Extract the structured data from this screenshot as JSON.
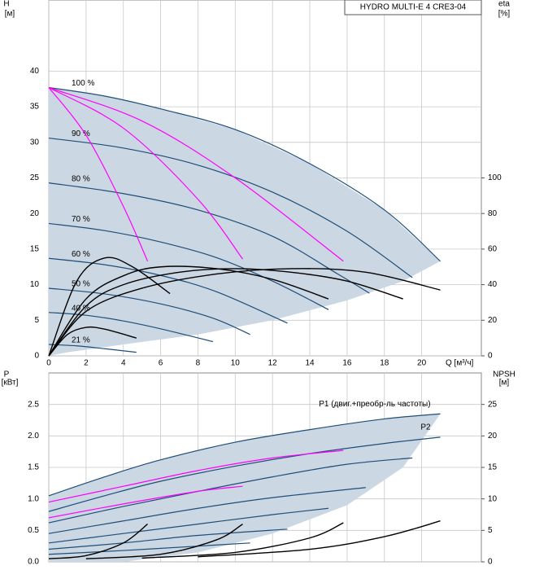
{
  "chart_data": [
    {
      "type": "line",
      "annotation": "HYDRO MULTI-E 4 CRE3-04",
      "y_label": "H",
      "y_unit": "[м]",
      "y2_label": "eta",
      "y2_unit": "[%]",
      "x_label": "Q [м³/ч]",
      "xlim": [
        0,
        23.2
      ],
      "ylim": [
        0,
        50
      ],
      "y2lim": [
        0,
        200
      ],
      "xticks": [
        0,
        2,
        4,
        6,
        8,
        10,
        12,
        14,
        16,
        18,
        20
      ],
      "yticks": [
        0,
        5,
        10,
        15,
        20,
        25,
        30,
        35,
        40
      ],
      "y2ticks": [
        0,
        20,
        40,
        60,
        80,
        100
      ],
      "grid": true,
      "area": {
        "color": "#cbd7e3",
        "x": [
          0,
          3,
          6,
          10,
          14,
          18,
          21,
          19,
          16,
          12,
          8,
          4,
          1,
          0
        ],
        "values": [
          37.7,
          36.5,
          34.7,
          31.8,
          27,
          20.5,
          13.3,
          10.5,
          7.8,
          5,
          3,
          1.6,
          0.5,
          0
        ]
      },
      "series": [
        {
          "name": "100 %",
          "color": "#1f4e79",
          "x": [
            0,
            3,
            6,
            10,
            14,
            18,
            21
          ],
          "values": [
            37.7,
            36.5,
            34.7,
            31.8,
            27,
            20.5,
            13.3
          ]
        },
        {
          "name": "90 %",
          "color": "#1f4e79",
          "x": [
            0,
            4,
            8,
            12,
            16,
            19.5
          ],
          "values": [
            30.6,
            29.2,
            26.8,
            23,
            17.5,
            11
          ]
        },
        {
          "name": "80 %",
          "color": "#1f4e79",
          "x": [
            0,
            4,
            8,
            12,
            15.5,
            17.2
          ],
          "values": [
            24.3,
            22.8,
            20.5,
            16.8,
            11.5,
            8.8
          ]
        },
        {
          "name": "70 %",
          "color": "#1f4e79",
          "x": [
            0,
            3,
            6,
            9,
            12,
            15
          ],
          "values": [
            18.6,
            17.6,
            16,
            13.8,
            10.5,
            6.5
          ]
        },
        {
          "name": "60 %",
          "color": "#1f4e79",
          "x": [
            0,
            3,
            6,
            9,
            12.8
          ],
          "values": [
            13.7,
            12.8,
            11.3,
            9,
            4.6
          ]
        },
        {
          "name": "50 %",
          "color": "#1f4e79",
          "x": [
            0,
            3,
            6,
            8.8,
            10.8
          ],
          "values": [
            9.5,
            8.7,
            7.3,
            5.3,
            3
          ]
        },
        {
          "name": "40 %",
          "color": "#1f4e79",
          "x": [
            0,
            2,
            4,
            6,
            8.8
          ],
          "values": [
            6.1,
            5.7,
            4.9,
            3.8,
            2
          ]
        },
        {
          "name": "21 %",
          "color": "#1f4e79",
          "x": [
            0,
            1.5,
            3,
            4.7
          ],
          "values": [
            1.6,
            1.4,
            1.0,
            0.5
          ]
        },
        {
          "color": "#ff00ff",
          "x": [
            0,
            2,
            4,
            5.3
          ],
          "values": [
            37.7,
            31,
            21,
            13.3
          ]
        },
        {
          "color": "#ff00ff",
          "x": [
            0,
            4,
            8,
            10.4
          ],
          "values": [
            37.7,
            32,
            22,
            13.6
          ]
        },
        {
          "color": "#ff00ff",
          "x": [
            0,
            5,
            10,
            15.8
          ],
          "values": [
            37.7,
            33,
            25,
            13.3
          ]
        },
        {
          "color": "#000000",
          "axis": "y2",
          "x": [
            0,
            2,
            5,
            9,
            13,
            17,
            21
          ],
          "values": [
            0,
            25,
            38,
            46,
            49,
            47,
            37
          ]
        },
        {
          "color": "#000000",
          "axis": "y2",
          "x": [
            0,
            2,
            4,
            7,
            10,
            13,
            16,
            19
          ],
          "values": [
            0,
            28,
            40,
            47,
            49,
            47,
            42,
            32
          ]
        },
        {
          "color": "#000000",
          "axis": "y2",
          "x": [
            0,
            2,
            4,
            6,
            9,
            12,
            15
          ],
          "values": [
            0,
            32,
            45,
            50,
            49,
            43,
            32
          ]
        },
        {
          "color": "#000000",
          "axis": "y2",
          "x": [
            0,
            1.5,
            3,
            4.5,
            6.5
          ],
          "values": [
            0,
            42,
            55,
            50,
            35
          ]
        },
        {
          "color": "#000000",
          "axis": "y2",
          "x": [
            0,
            1,
            2,
            3,
            4.7
          ],
          "values": [
            0,
            12,
            16,
            15,
            10
          ]
        }
      ]
    },
    {
      "type": "line",
      "y_label": "P",
      "y_unit": "[кВт]",
      "y2_label": "NPSH",
      "y2_unit": "[м]",
      "xlim": [
        0,
        23.2
      ],
      "ylim": [
        0,
        3
      ],
      "y2lim": [
        0,
        30
      ],
      "yticks": [
        {
          "value": 0,
          "label": "0.0"
        },
        0.5,
        {
          "value": 1,
          "label": "1.0"
        },
        1.5,
        {
          "value": 2,
          "label": "2.0"
        },
        2.5
      ],
      "y2ticks": [
        0,
        5,
        10,
        15,
        20,
        25
      ],
      "grid": true,
      "area": {
        "color": "#cbd7e3",
        "x": [
          0,
          3,
          6,
          10,
          14,
          18,
          21,
          19,
          16,
          12,
          8,
          4,
          0
        ],
        "values": [
          1.05,
          1.35,
          1.62,
          1.9,
          2.1,
          2.27,
          2.35,
          1.5,
          0.9,
          0.45,
          0.15,
          0,
          0
        ]
      },
      "series": [
        {
          "name": "P1 (двиг.+преобр-ль частоты)",
          "color": "#1f4e79",
          "x": [
            0,
            3,
            6,
            10,
            14,
            18,
            21
          ],
          "values": [
            1.05,
            1.35,
            1.62,
            1.9,
            2.1,
            2.27,
            2.35
          ]
        },
        {
          "name": "P2",
          "color": "#1f4e79",
          "x": [
            0,
            3,
            6,
            10,
            14,
            18,
            21
          ],
          "values": [
            0.8,
            1.05,
            1.28,
            1.52,
            1.72,
            1.88,
            1.98
          ]
        },
        {
          "color": "#1f4e79",
          "x": [
            0,
            4,
            8,
            12,
            16,
            19.5
          ],
          "values": [
            0.62,
            0.88,
            1.12,
            1.35,
            1.55,
            1.65
          ]
        },
        {
          "color": "#1f4e79",
          "x": [
            0,
            4,
            8,
            12,
            17
          ],
          "values": [
            0.45,
            0.65,
            0.85,
            1.02,
            1.18
          ]
        },
        {
          "color": "#1f4e79",
          "x": [
            0,
            4,
            8,
            12,
            15
          ],
          "values": [
            0.3,
            0.45,
            0.6,
            0.75,
            0.85
          ]
        },
        {
          "color": "#1f4e79",
          "x": [
            0,
            4,
            8,
            12.8
          ],
          "values": [
            0.2,
            0.3,
            0.42,
            0.52
          ]
        },
        {
          "color": "#1f4e79",
          "x": [
            0,
            4,
            8,
            10.8
          ],
          "values": [
            0.12,
            0.18,
            0.25,
            0.3
          ]
        },
        {
          "color": "#ff00ff",
          "x": [
            0,
            4,
            8,
            12,
            15.8
          ],
          "values": [
            0.95,
            1.2,
            1.45,
            1.65,
            1.77
          ]
        },
        {
          "color": "#ff00ff",
          "x": [
            0,
            4,
            8,
            10.4
          ],
          "values": [
            0.7,
            0.92,
            1.12,
            1.2
          ]
        },
        {
          "color": "#000000",
          "axis": "y2",
          "x": [
            0,
            2,
            4,
            5.3
          ],
          "values": [
            0.5,
            1,
            3,
            6
          ]
        },
        {
          "color": "#000000",
          "axis": "y2",
          "x": [
            2,
            6,
            9,
            10.4
          ],
          "values": [
            0.5,
            1.2,
            3.5,
            6
          ]
        },
        {
          "color": "#000000",
          "axis": "y2",
          "x": [
            5,
            10,
            14,
            15.8
          ],
          "values": [
            0.6,
            1.5,
            3.8,
            6.2
          ]
        },
        {
          "color": "#000000",
          "axis": "y2",
          "x": [
            8,
            14,
            18,
            21
          ],
          "values": [
            0.8,
            2,
            4,
            6.5
          ]
        }
      ]
    }
  ]
}
